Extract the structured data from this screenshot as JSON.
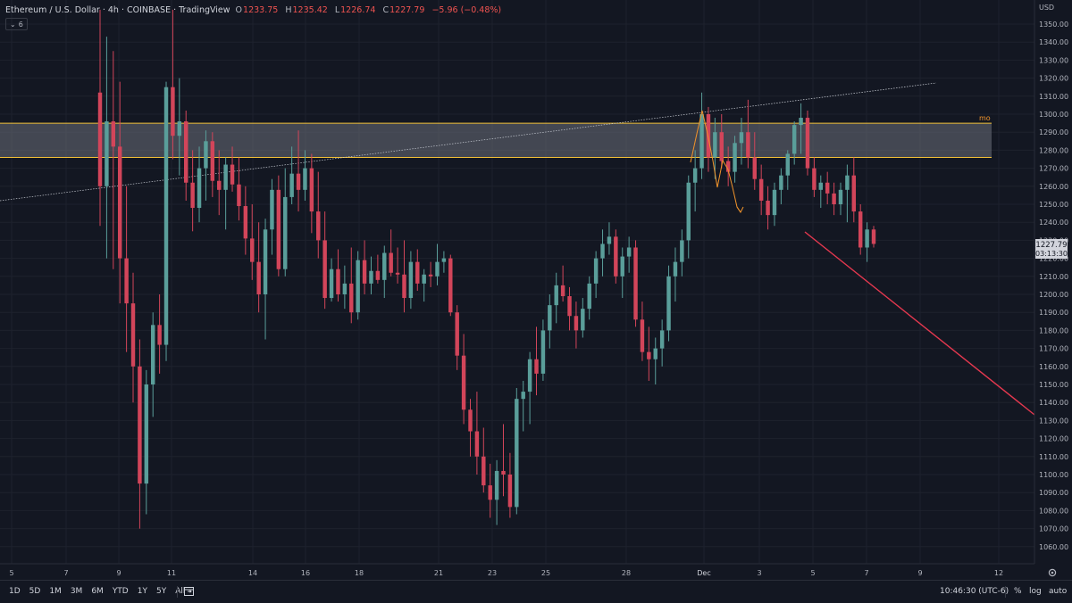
{
  "header": {
    "symbol": "Ethereum / U.S. Dollar · 4h · COINBASE · TradingView",
    "o_label": "O",
    "o_value": "1233.75",
    "h_label": "H",
    "h_value": "1235.42",
    "l_label": "L",
    "l_value": "1226.74",
    "c_label": "C",
    "c_value": "1227.79",
    "change": "−5.96 (−0.48%)",
    "indicator_count": "6",
    "currency": "USD"
  },
  "price_label": {
    "value": "1227.79",
    "countdown": "03:13:30"
  },
  "zone_label": "mo",
  "footer": {
    "ranges": [
      "1D",
      "5D",
      "1M",
      "3M",
      "6M",
      "YTD",
      "1Y",
      "5Y",
      "All"
    ],
    "time": "10:46:30 (UTC-6)",
    "percent": "%",
    "log": "log",
    "auto": "auto"
  },
  "colors": {
    "background": "#131722",
    "up": "#5a9e9a",
    "down": "#d2455a",
    "zone_line": "#f2c037",
    "zone_fill": "#6b6f7a",
    "annotation": "#f0932b",
    "trend": "#e5384f"
  },
  "chart_data": {
    "type": "candlestick",
    "timeframe": "4h",
    "y_ticks": [
      1060,
      1070,
      1080,
      1090,
      1100,
      1110,
      1120,
      1130,
      1140,
      1150,
      1160,
      1170,
      1180,
      1190,
      1200,
      1210,
      1220,
      1230,
      1240,
      1250,
      1260,
      1270,
      1280,
      1290,
      1300,
      1310,
      1320,
      1330,
      1340,
      1350
    ],
    "y_range": [
      1050,
      1361
    ],
    "x_ticks": [
      "5",
      "7",
      "9",
      "11",
      "14",
      "16",
      "18",
      "21",
      "23",
      "25",
      "28",
      "Dec",
      "3",
      "5",
      "7",
      "9",
      "12"
    ],
    "resistance_zone": {
      "top": 1295,
      "bottom": 1276
    },
    "candles": [
      [
        1312,
        1358,
        1238,
        1260
      ],
      [
        1260,
        1343,
        1220,
        1296
      ],
      [
        1296,
        1335,
        1214,
        1282
      ],
      [
        1282,
        1318,
        1195,
        1220
      ],
      [
        1220,
        1260,
        1168,
        1195
      ],
      [
        1195,
        1212,
        1140,
        1160
      ],
      [
        1160,
        1175,
        1070,
        1095
      ],
      [
        1095,
        1158,
        1078,
        1150
      ],
      [
        1150,
        1190,
        1132,
        1183
      ],
      [
        1183,
        1200,
        1156,
        1172
      ],
      [
        1172,
        1318,
        1163,
        1315
      ],
      [
        1315,
        1358,
        1275,
        1288
      ],
      [
        1288,
        1320,
        1266,
        1296
      ],
      [
        1296,
        1302,
        1252,
        1262
      ],
      [
        1262,
        1280,
        1235,
        1248
      ],
      [
        1248,
        1282,
        1240,
        1270
      ],
      [
        1270,
        1291,
        1252,
        1285
      ],
      [
        1285,
        1290,
        1254,
        1263
      ],
      [
        1263,
        1280,
        1244,
        1258
      ],
      [
        1258,
        1276,
        1236,
        1272
      ],
      [
        1272,
        1282,
        1257,
        1261
      ],
      [
        1261,
        1276,
        1241,
        1249
      ],
      [
        1249,
        1260,
        1222,
        1231
      ],
      [
        1231,
        1250,
        1208,
        1218
      ],
      [
        1218,
        1240,
        1190,
        1200
      ],
      [
        1200,
        1242,
        1175,
        1236
      ],
      [
        1236,
        1264,
        1222,
        1258
      ],
      [
        1258,
        1266,
        1210,
        1214
      ],
      [
        1214,
        1270,
        1210,
        1254
      ],
      [
        1254,
        1282,
        1250,
        1267
      ],
      [
        1267,
        1291,
        1246,
        1258
      ],
      [
        1258,
        1280,
        1252,
        1270
      ],
      [
        1270,
        1278,
        1234,
        1246
      ],
      [
        1246,
        1268,
        1220,
        1230
      ],
      [
        1230,
        1246,
        1192,
        1198
      ],
      [
        1198,
        1220,
        1196,
        1214
      ],
      [
        1214,
        1225,
        1196,
        1200
      ],
      [
        1200,
        1216,
        1192,
        1206
      ],
      [
        1206,
        1226,
        1184,
        1190
      ],
      [
        1190,
        1224,
        1186,
        1219
      ],
      [
        1219,
        1230,
        1200,
        1206
      ],
      [
        1206,
        1221,
        1200,
        1213
      ],
      [
        1213,
        1222,
        1206,
        1208
      ],
      [
        1208,
        1227,
        1198,
        1223
      ],
      [
        1223,
        1236,
        1210,
        1212
      ],
      [
        1212,
        1226,
        1206,
        1211
      ],
      [
        1211,
        1230,
        1190,
        1198
      ],
      [
        1198,
        1224,
        1192,
        1218
      ],
      [
        1218,
        1225,
        1202,
        1206
      ],
      [
        1206,
        1214,
        1196,
        1211
      ],
      [
        1211,
        1218,
        1204,
        1210
      ],
      [
        1210,
        1228,
        1205,
        1218
      ],
      [
        1218,
        1224,
        1212,
        1220
      ],
      [
        1220,
        1222,
        1188,
        1190
      ],
      [
        1190,
        1194,
        1158,
        1166
      ],
      [
        1166,
        1178,
        1128,
        1136
      ],
      [
        1136,
        1142,
        1110,
        1124
      ],
      [
        1124,
        1146,
        1100,
        1110
      ],
      [
        1110,
        1126,
        1090,
        1094
      ],
      [
        1094,
        1106,
        1076,
        1086
      ],
      [
        1086,
        1108,
        1072,
        1102
      ],
      [
        1102,
        1128,
        1088,
        1100
      ],
      [
        1100,
        1112,
        1076,
        1082
      ],
      [
        1082,
        1148,
        1078,
        1142
      ],
      [
        1142,
        1152,
        1124,
        1146
      ],
      [
        1146,
        1168,
        1128,
        1164
      ],
      [
        1164,
        1182,
        1144,
        1156
      ],
      [
        1156,
        1186,
        1152,
        1180
      ],
      [
        1180,
        1200,
        1170,
        1194
      ],
      [
        1194,
        1212,
        1184,
        1205
      ],
      [
        1205,
        1216,
        1196,
        1199
      ],
      [
        1199,
        1204,
        1180,
        1188
      ],
      [
        1188,
        1196,
        1170,
        1180
      ],
      [
        1180,
        1198,
        1176,
        1192
      ],
      [
        1192,
        1210,
        1186,
        1206
      ],
      [
        1206,
        1224,
        1198,
        1220
      ],
      [
        1220,
        1236,
        1210,
        1228
      ],
      [
        1228,
        1240,
        1222,
        1232
      ],
      [
        1232,
        1236,
        1206,
        1210
      ],
      [
        1210,
        1226,
        1198,
        1221
      ],
      [
        1221,
        1232,
        1212,
        1226
      ],
      [
        1226,
        1230,
        1182,
        1186
      ],
      [
        1186,
        1196,
        1163,
        1168
      ],
      [
        1168,
        1182,
        1152,
        1164
      ],
      [
        1164,
        1176,
        1150,
        1170
      ],
      [
        1170,
        1186,
        1160,
        1180
      ],
      [
        1180,
        1216,
        1174,
        1210
      ],
      [
        1210,
        1226,
        1196,
        1218
      ],
      [
        1218,
        1236,
        1210,
        1230
      ],
      [
        1230,
        1266,
        1220,
        1262
      ],
      [
        1262,
        1280,
        1246,
        1270
      ],
      [
        1270,
        1312,
        1264,
        1300
      ],
      [
        1300,
        1304,
        1268,
        1276
      ],
      [
        1276,
        1298,
        1264,
        1290
      ],
      [
        1290,
        1300,
        1270,
        1274
      ],
      [
        1274,
        1282,
        1260,
        1268
      ],
      [
        1268,
        1288,
        1262,
        1284
      ],
      [
        1284,
        1298,
        1272,
        1290
      ],
      [
        1290,
        1308,
        1270,
        1276
      ],
      [
        1276,
        1290,
        1258,
        1264
      ],
      [
        1264,
        1272,
        1244,
        1252
      ],
      [
        1252,
        1260,
        1236,
        1244
      ],
      [
        1244,
        1262,
        1238,
        1258
      ],
      [
        1258,
        1270,
        1250,
        1266
      ],
      [
        1266,
        1280,
        1258,
        1278
      ],
      [
        1278,
        1296,
        1272,
        1294
      ],
      [
        1294,
        1306,
        1278,
        1298
      ],
      [
        1298,
        1302,
        1266,
        1270
      ],
      [
        1270,
        1276,
        1254,
        1258
      ],
      [
        1258,
        1266,
        1248,
        1262
      ],
      [
        1262,
        1268,
        1250,
        1256
      ],
      [
        1256,
        1262,
        1244,
        1250
      ],
      [
        1250,
        1262,
        1244,
        1258
      ],
      [
        1258,
        1272,
        1240,
        1266
      ],
      [
        1266,
        1276,
        1240,
        1246
      ],
      [
        1246,
        1250,
        1222,
        1226
      ],
      [
        1226,
        1240,
        1218,
        1236
      ],
      [
        1236,
        1238,
        1226,
        1228
      ]
    ]
  }
}
